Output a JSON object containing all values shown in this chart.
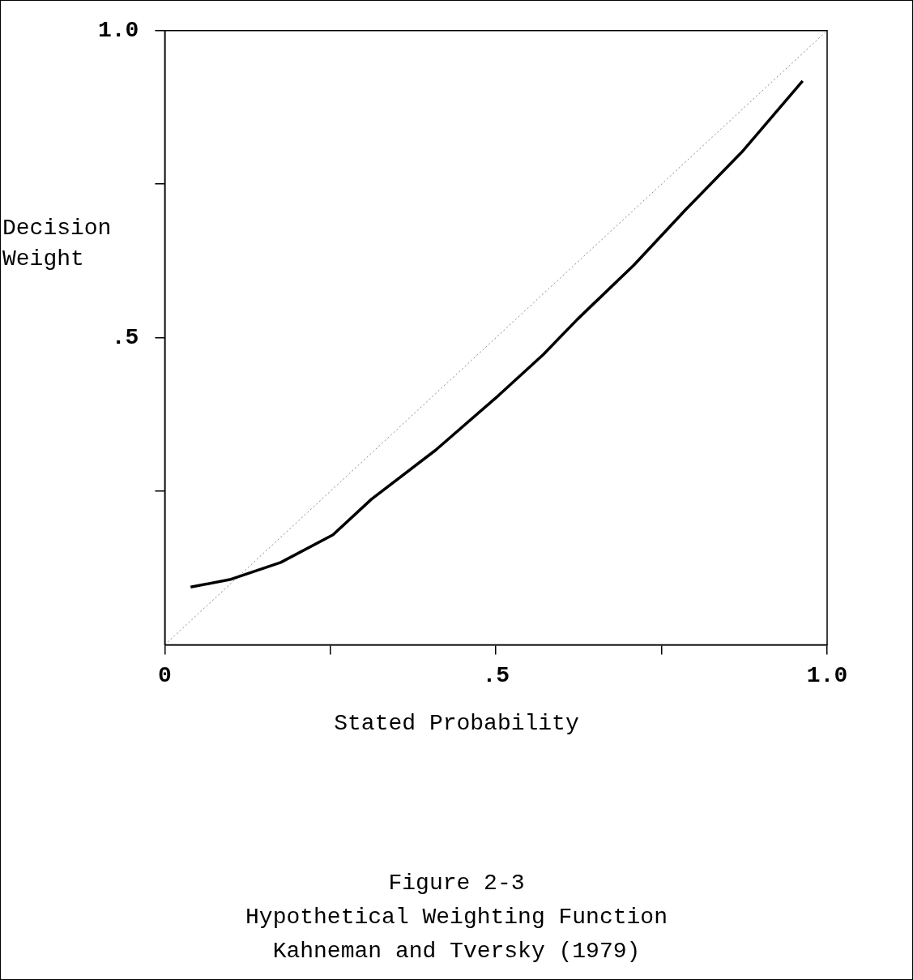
{
  "chart_data": {
    "type": "line",
    "title": "Figure 2-3",
    "subtitle": "Hypothetical Weighting Function",
    "annotations": [
      "Kahneman and Tversky (1979)"
    ],
    "xlabel": "Stated Probability",
    "ylabel": "Decision Weight",
    "xlim": [
      0,
      1
    ],
    "ylim": [
      0,
      1
    ],
    "xticks": [
      {
        "value": 0,
        "label": "0"
      },
      {
        "value": 0.25,
        "label": null
      },
      {
        "value": 0.5,
        "label": ".5"
      },
      {
        "value": 0.75,
        "label": null
      },
      {
        "value": 1,
        "label": "1.0"
      }
    ],
    "yticks": [
      {
        "value": 0.25,
        "label": null
      },
      {
        "value": 0.5,
        "label": ".5"
      },
      {
        "value": 0.75,
        "label": null
      },
      {
        "value": 1,
        "label": "1.0"
      }
    ],
    "grid": false,
    "legend": false,
    "marker": "none",
    "series": [
      {
        "color": "#000000",
        "x": [
          0.039,
          0.098,
          0.175,
          0.254,
          0.312,
          0.409,
          0.504,
          0.571,
          0.623,
          0.708,
          0.786,
          0.871,
          0.963
        ],
        "values": [
          0.094,
          0.106,
          0.134,
          0.179,
          0.237,
          0.317,
          0.406,
          0.472,
          0.53,
          0.618,
          0.708,
          0.802,
          0.918
        ],
        "line_style": "solid"
      },
      {
        "color": "#888888",
        "x": [
          0,
          1
        ],
        "values": [
          0,
          1
        ],
        "line_style": "dotted"
      }
    ]
  }
}
